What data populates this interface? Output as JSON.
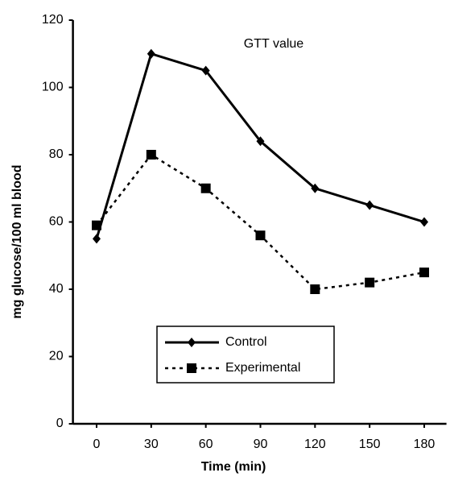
{
  "chart_data": {
    "type": "line",
    "title": "GTT value",
    "x_label": "Time (min)",
    "y_label": "mg glucose/100 ml blood",
    "x": [
      0,
      30,
      60,
      90,
      120,
      150,
      180
    ],
    "series": [
      {
        "name": "Control",
        "color": "#000000",
        "marker": "diamond",
        "dash": "solid",
        "values": [
          55,
          110,
          105,
          84,
          70,
          65,
          60
        ]
      },
      {
        "name": "Experimental",
        "color": "#000000",
        "marker": "square",
        "dash": "dotted",
        "values": [
          59,
          80,
          70,
          56,
          40,
          42,
          45
        ]
      }
    ],
    "xlim": [
      -13,
      190
    ],
    "xticks": [
      0,
      30,
      60,
      90,
      120,
      150,
      180
    ],
    "ylim": [
      0,
      120
    ],
    "yticks": [
      0,
      20,
      40,
      60,
      80,
      100,
      120
    ]
  }
}
